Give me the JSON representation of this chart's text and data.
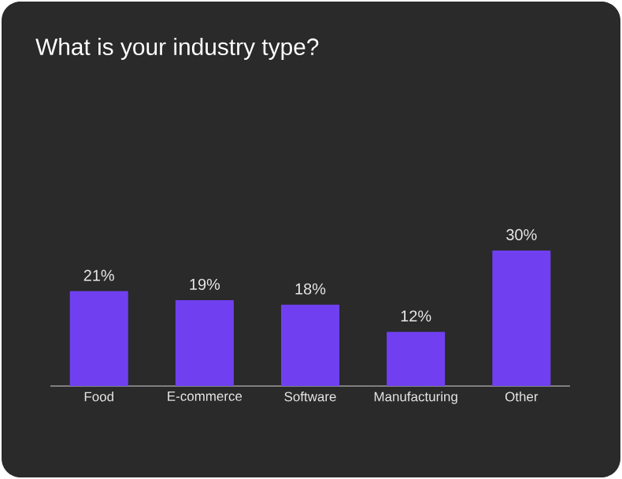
{
  "chart_data": {
    "type": "bar",
    "title": "What is your industry type?",
    "categories": [
      "Food",
      "E-commerce",
      "Software",
      "Manufacturing",
      "Other"
    ],
    "values": [
      21,
      19,
      18,
      12,
      30
    ],
    "value_labels": [
      "21%",
      "19%",
      "18%",
      "12%",
      "30%"
    ],
    "color": "#7040f0"
  }
}
